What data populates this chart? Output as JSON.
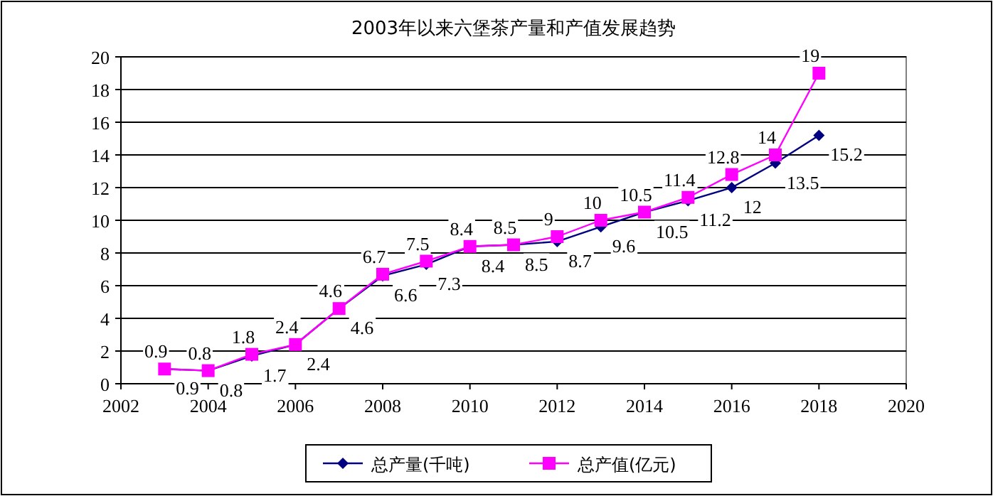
{
  "chart_data": {
    "type": "line",
    "title": "2003年以来六堡茶产量和产值发展趋势",
    "x": [
      2003,
      2004,
      2005,
      2006,
      2007,
      2008,
      2009,
      2010,
      2011,
      2012,
      2013,
      2014,
      2015,
      2016,
      2017,
      2018
    ],
    "series": [
      {
        "name": "总产量(千吨)",
        "color": "#000080",
        "marker": "diamond",
        "values": [
          0.9,
          0.8,
          1.7,
          2.4,
          4.6,
          6.6,
          7.3,
          8.4,
          8.5,
          8.7,
          9.6,
          10.5,
          11.2,
          12,
          13.5,
          15.2
        ]
      },
      {
        "name": "总产值(亿元)",
        "color": "#ff00ff",
        "marker": "square",
        "values": [
          0.9,
          0.8,
          1.8,
          2.4,
          4.6,
          6.7,
          7.5,
          8.4,
          8.5,
          9,
          10,
          10.5,
          11.4,
          12.8,
          14,
          19
        ]
      }
    ],
    "xlim": [
      2002,
      2020
    ],
    "xticks": [
      2002,
      2004,
      2006,
      2008,
      2010,
      2012,
      2014,
      2016,
      2018,
      2020
    ],
    "ylim": [
      0,
      20
    ],
    "yticks": [
      0,
      2,
      4,
      6,
      8,
      10,
      12,
      14,
      16,
      18,
      20
    ],
    "grid": "y",
    "legend": "bottom",
    "data_labels": true,
    "line_style": "solid"
  }
}
